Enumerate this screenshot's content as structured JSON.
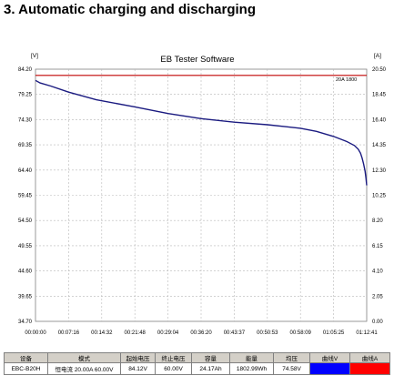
{
  "heading": "3. Automatic charging and discharging",
  "window": {
    "title": "EB Tester Software",
    "left_unit": "[V]",
    "right_unit": "[A]",
    "marker": "20A 1800"
  },
  "colors": {
    "voltage_line": "#1a1a80",
    "current_line": "#c00000",
    "grid": "#b8b8b8",
    "voltage_swatch": "#0000ff",
    "current_swatch": "#ff0000"
  },
  "chart_data": {
    "type": "line",
    "title": "EB Tester Software",
    "xlabel": "",
    "ylabel": "[V]",
    "y2label": "[A]",
    "x_ticks": [
      "00:00:00",
      "00:07:16",
      "00:14:32",
      "00:21:48",
      "00:29:04",
      "00:36:20",
      "00:43:37",
      "00:50:53",
      "00:58:09",
      "01:05:25",
      "01:12:41"
    ],
    "x_range_seconds": [
      0,
      4361
    ],
    "y_ticks": [
      "84.20",
      "79.25",
      "74.30",
      "69.35",
      "64.40",
      "59.45",
      "54.50",
      "49.55",
      "44.60",
      "39.65",
      "34.70"
    ],
    "ylim": [
      34.7,
      84.2
    ],
    "y2_ticks": [
      "20.50",
      "18.45",
      "16.40",
      "14.35",
      "12.30",
      "10.25",
      "8.20",
      "6.15",
      "4.10",
      "2.05",
      "0.00"
    ],
    "y2lim": [
      0,
      20.5
    ],
    "grid": true,
    "series": [
      {
        "name": "",
        "axis": "left",
        "x_seconds": [
          0,
          60,
          200,
          436,
          800,
          1308,
          1745,
          2180,
          2617,
          3053,
          3300,
          3490,
          3700,
          3926,
          4100,
          4200,
          4250,
          4280,
          4300,
          4320,
          4340,
          4352,
          4361
        ],
        "values": [
          82.0,
          81.5,
          80.9,
          79.7,
          78.2,
          76.8,
          75.5,
          74.5,
          73.8,
          73.3,
          72.9,
          72.6,
          72.0,
          71.0,
          70.0,
          69.2,
          68.5,
          67.7,
          66.8,
          65.6,
          64.2,
          62.8,
          61.4
        ]
      },
      {
        "name": "",
        "axis": "right",
        "x_seconds": [
          0,
          4361
        ],
        "values": [
          20.0,
          20.0
        ]
      }
    ]
  },
  "table": {
    "headers": [
      "设备",
      "模式",
      "起始电压",
      "终止电压",
      "容量",
      "能量",
      "均压",
      "曲线V",
      "曲线A"
    ],
    "values": [
      "EBC-B20H",
      "恒电流 20.00A 60.00V",
      "84.12V",
      "60.00V",
      "24.17Ah",
      "1802.99Wh",
      "74.58V",
      "",
      ""
    ]
  }
}
